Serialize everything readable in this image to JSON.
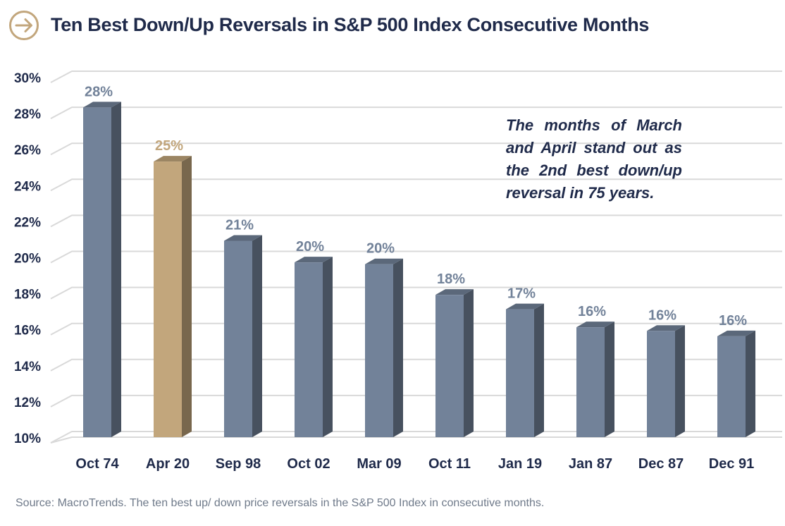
{
  "header": {
    "title": "Ten Best Down/Up Reversals in S&P 500 Index Consecutive Months",
    "icon": "arrow-right-circle-icon",
    "icon_color": "#c2a67c"
  },
  "annotation": "The months of March and April stand out as the 2nd best down/up reversal in 75 years.",
  "source": "Source: MacroTrends. The ten best up/ down price reversals in the S&P 500 Index in consecutive months.",
  "colors": {
    "bar": "#728299",
    "bar_highlight": "#c2a67c",
    "label": "#728299",
    "label_highlight": "#c2a67c",
    "axis_text": "#1f2a4a",
    "grid": "#d9d9d9"
  },
  "chart_data": {
    "type": "bar",
    "title": "Ten Best Down/Up Reversals in S&P 500 Index Consecutive Months",
    "categories": [
      "Oct 74",
      "Apr 20",
      "Sep 98",
      "Oct 02",
      "Mar 09",
      "Oct 11",
      "Jan 19",
      "Jan 87",
      "Dec 87",
      "Dec 91"
    ],
    "values": [
      28.3,
      25.3,
      20.9,
      19.7,
      19.6,
      17.9,
      17.1,
      16.1,
      15.9,
      15.6
    ],
    "data_labels": [
      "28%",
      "25%",
      "21%",
      "20%",
      "20%",
      "18%",
      "17%",
      "16%",
      "16%",
      "16%"
    ],
    "highlight_index": 1,
    "ylim": [
      10,
      30
    ],
    "yticks": [
      10,
      12,
      14,
      16,
      18,
      20,
      22,
      24,
      26,
      28,
      30
    ],
    "ytick_labels": [
      "10%",
      "12%",
      "14%",
      "16%",
      "18%",
      "20%",
      "22%",
      "24%",
      "26%",
      "28%",
      "30%"
    ],
    "xlabel": "",
    "ylabel": "",
    "grid": true,
    "legend": "none"
  }
}
